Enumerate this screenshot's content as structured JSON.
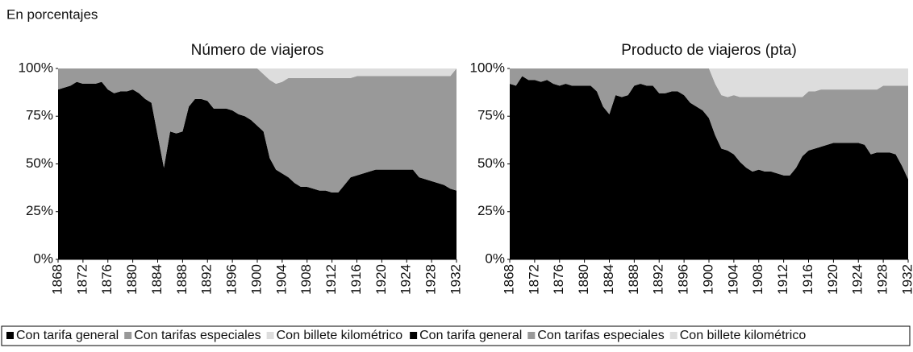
{
  "header": {
    "title": "En porcentajes"
  },
  "chart_data": [
    {
      "type": "area",
      "stacked": true,
      "title": "Número de viajeros",
      "x": [
        1868,
        1869,
        1870,
        1871,
        1872,
        1873,
        1874,
        1875,
        1876,
        1877,
        1878,
        1879,
        1880,
        1881,
        1882,
        1883,
        1884,
        1885,
        1886,
        1887,
        1888,
        1889,
        1890,
        1891,
        1892,
        1893,
        1894,
        1895,
        1896,
        1897,
        1898,
        1899,
        1900,
        1901,
        1902,
        1903,
        1904,
        1905,
        1906,
        1907,
        1908,
        1909,
        1910,
        1911,
        1912,
        1913,
        1914,
        1915,
        1916,
        1917,
        1918,
        1919,
        1920,
        1921,
        1922,
        1923,
        1924,
        1925,
        1926,
        1927,
        1928,
        1929,
        1930,
        1931,
        1932
      ],
      "xlim": [
        1868,
        1932
      ],
      "xticks": [
        1868,
        1872,
        1876,
        1880,
        1884,
        1888,
        1892,
        1896,
        1900,
        1904,
        1908,
        1912,
        1916,
        1920,
        1924,
        1928,
        1932
      ],
      "ylim": [
        0,
        100
      ],
      "yticks": [
        {
          "value": 0,
          "label": "0%"
        },
        {
          "value": 25,
          "label": "25%"
        },
        {
          "value": 50,
          "label": "50%"
        },
        {
          "value": 75,
          "label": "75%"
        },
        {
          "value": 100,
          "label": "100%"
        }
      ],
      "series": [
        {
          "name": "Con tarifa general",
          "color": "#000000",
          "values": [
            89,
            90,
            91,
            93,
            92,
            92,
            92,
            93,
            89,
            87,
            88,
            88,
            89,
            87,
            84,
            82,
            65,
            48,
            67,
            66,
            67,
            80,
            84,
            84,
            83,
            79,
            79,
            79,
            78,
            76,
            75,
            73,
            70,
            67,
            53,
            47,
            45,
            43,
            40,
            38,
            38,
            37,
            36,
            36,
            35,
            35,
            39,
            43,
            44,
            45,
            46,
            47,
            47,
            47,
            47,
            47,
            47,
            47,
            43,
            42,
            41,
            40,
            39,
            37,
            36
          ]
        },
        {
          "name": "Con tarifas especiales",
          "color": "#999999",
          "values": [
            11,
            10,
            9,
            7,
            8,
            8,
            8,
            7,
            11,
            13,
            12,
            12,
            11,
            13,
            16,
            18,
            35,
            52,
            33,
            34,
            33,
            20,
            16,
            16,
            17,
            21,
            21,
            21,
            22,
            24,
            25,
            27,
            30,
            30,
            41,
            45,
            48,
            52,
            55,
            57,
            57,
            58,
            59,
            59,
            60,
            60,
            56,
            52,
            52,
            51,
            50,
            49,
            49,
            49,
            49,
            49,
            49,
            49,
            53,
            54,
            55,
            56,
            57,
            59,
            64
          ]
        },
        {
          "name": "Con billete kilométrico",
          "color": "#dddddd",
          "values": [
            0,
            0,
            0,
            0,
            0,
            0,
            0,
            0,
            0,
            0,
            0,
            0,
            0,
            0,
            0,
            0,
            0,
            0,
            0,
            0,
            0,
            0,
            0,
            0,
            0,
            0,
            0,
            0,
            0,
            0,
            0,
            0,
            0,
            3,
            6,
            8,
            7,
            5,
            5,
            5,
            5,
            5,
            5,
            5,
            5,
            5,
            5,
            5,
            4,
            4,
            4,
            4,
            4,
            4,
            4,
            4,
            4,
            4,
            4,
            4,
            4,
            4,
            4,
            4,
            0
          ]
        }
      ]
    },
    {
      "type": "area",
      "stacked": true,
      "title": "Producto de viajeros (pta)",
      "x": [
        1868,
        1869,
        1870,
        1871,
        1872,
        1873,
        1874,
        1875,
        1876,
        1877,
        1878,
        1879,
        1880,
        1881,
        1882,
        1883,
        1884,
        1885,
        1886,
        1887,
        1888,
        1889,
        1890,
        1891,
        1892,
        1893,
        1894,
        1895,
        1896,
        1897,
        1898,
        1899,
        1900,
        1901,
        1902,
        1903,
        1904,
        1905,
        1906,
        1907,
        1908,
        1909,
        1910,
        1911,
        1912,
        1913,
        1914,
        1915,
        1916,
        1917,
        1918,
        1919,
        1920,
        1921,
        1922,
        1923,
        1924,
        1925,
        1926,
        1927,
        1928,
        1929,
        1930,
        1931,
        1932
      ],
      "xlim": [
        1868,
        1932
      ],
      "xticks": [
        1868,
        1872,
        1876,
        1880,
        1884,
        1888,
        1892,
        1896,
        1900,
        1904,
        1908,
        1912,
        1916,
        1920,
        1924,
        1928,
        1932
      ],
      "ylim": [
        0,
        100
      ],
      "yticks": [
        {
          "value": 0,
          "label": "0%"
        },
        {
          "value": 25,
          "label": "25%"
        },
        {
          "value": 50,
          "label": "50%"
        },
        {
          "value": 75,
          "label": "75%"
        },
        {
          "value": 100,
          "label": "100%"
        }
      ],
      "series": [
        {
          "name": "Con tarifa general",
          "color": "#000000",
          "values": [
            92,
            91,
            96,
            94,
            94,
            93,
            94,
            92,
            91,
            92,
            91,
            91,
            91,
            91,
            88,
            80,
            76,
            86,
            85,
            86,
            91,
            92,
            91,
            91,
            87,
            87,
            88,
            88,
            86,
            82,
            80,
            78,
            74,
            65,
            58,
            57,
            55,
            51,
            48,
            46,
            47,
            46,
            46,
            45,
            44,
            44,
            48,
            54,
            57,
            58,
            59,
            60,
            61,
            61,
            61,
            61,
            61,
            60,
            55,
            56,
            56,
            56,
            55,
            49,
            42
          ]
        },
        {
          "name": "Con tarifas especiales",
          "color": "#999999",
          "values": [
            8,
            9,
            4,
            6,
            6,
            7,
            6,
            8,
            9,
            8,
            9,
            9,
            9,
            9,
            12,
            20,
            24,
            14,
            15,
            14,
            9,
            8,
            9,
            9,
            13,
            13,
            12,
            12,
            14,
            18,
            20,
            22,
            26,
            27,
            28,
            28,
            31,
            34,
            37,
            39,
            38,
            39,
            39,
            40,
            41,
            41,
            37,
            31,
            31,
            30,
            30,
            29,
            28,
            28,
            28,
            28,
            28,
            29,
            34,
            33,
            35,
            35,
            36,
            42,
            49
          ]
        },
        {
          "name": "Con billete kilométrico",
          "color": "#dddddd",
          "values": [
            0,
            0,
            0,
            0,
            0,
            0,
            0,
            0,
            0,
            0,
            0,
            0,
            0,
            0,
            0,
            0,
            0,
            0,
            0,
            0,
            0,
            0,
            0,
            0,
            0,
            0,
            0,
            0,
            0,
            0,
            0,
            0,
            0,
            8,
            14,
            15,
            14,
            15,
            15,
            15,
            15,
            15,
            15,
            15,
            15,
            15,
            15,
            15,
            12,
            12,
            11,
            11,
            11,
            11,
            11,
            11,
            11,
            11,
            11,
            11,
            9,
            9,
            9,
            9,
            9
          ]
        }
      ]
    }
  ]
}
